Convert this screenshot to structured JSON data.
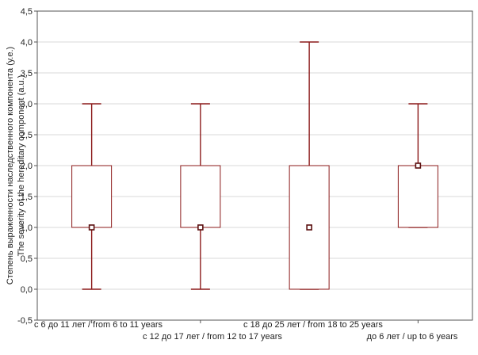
{
  "chart_data": {
    "type": "boxplot",
    "ylabel_lines": [
      "Степень выраженности наследственного компонента (у.е.)",
      "The severity of the hereditary component (a.u.)"
    ],
    "ylim": [
      -0.5,
      4.5
    ],
    "yticks": [
      -0.5,
      0,
      0.5,
      1,
      1.5,
      2,
      2.5,
      3,
      3.5,
      4,
      4.5
    ],
    "ytick_labels": [
      "-0,5",
      "0,0",
      "0,5",
      "1,0",
      "1,5",
      "2,0",
      "2,5",
      "3,0",
      "3,5",
      "4,0",
      "4,5"
    ],
    "grid": true,
    "categories": [
      "с 6 до 11 лет / from 6 to 11 years",
      "с 12 до 17 лет / from 12 to 17 years",
      "с 18 до 25 лет / from 18 to 25 years",
      "до 6 лет / up to 6 years"
    ],
    "boxes": [
      {
        "min": 0,
        "q1": 1,
        "median": 1,
        "q3": 2,
        "max": 3
      },
      {
        "min": 0,
        "q1": 1,
        "median": 1,
        "q3": 2,
        "max": 3
      },
      {
        "min": 0,
        "q1": 0,
        "median": 1,
        "q3": 2,
        "max": 4
      },
      {
        "min": 1,
        "q1": 1,
        "median": 2,
        "q3": 2,
        "max": 3
      }
    ],
    "colors": {
      "whisker": "#8b1a1a",
      "box": "#8b1a1a",
      "median_marker": "#5a0f0f",
      "grid": "#d8d8d8",
      "frame": "#555555"
    }
  }
}
